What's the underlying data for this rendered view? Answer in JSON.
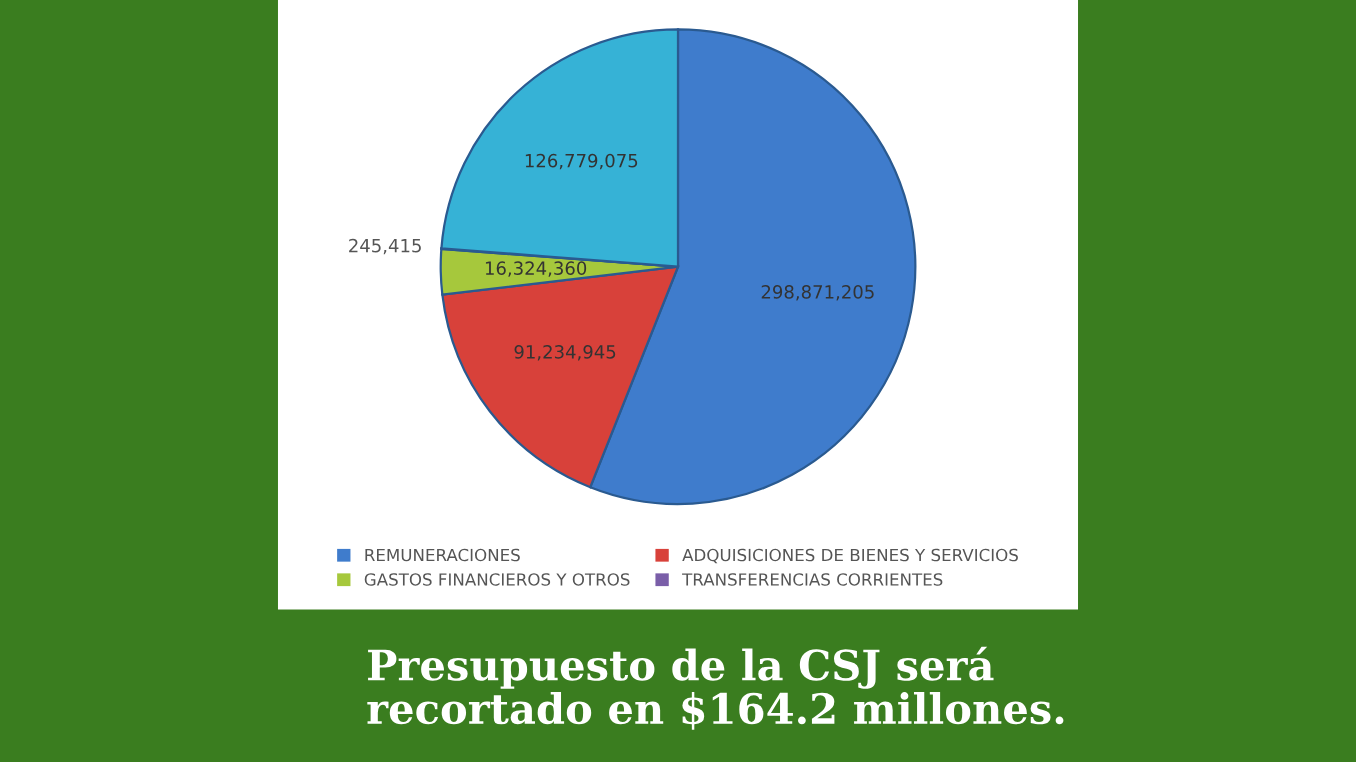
{
  "chart_data": {
    "type": "pie",
    "title": "Presupuesto de la CSJ será\nrecortado en $164.2 millones.",
    "categories": [
      "REMUNERACIONES",
      "ADQUISICIONES DE BIENES Y SERVICIOS",
      "GASTOS FINANCIEROS Y OTROS",
      "TRANSFERENCIAS CORRIENTES",
      null
    ],
    "values": [
      298871205,
      91234945,
      16324360,
      245415,
      126779075
    ],
    "value_labels": [
      "298,871,205",
      "91,234,945",
      "16,324,360",
      "245,415",
      "126,779,075"
    ],
    "colors": [
      "#3f7ccc",
      "#d8413a",
      "#a6c83c",
      "#7a5ea8",
      "#36b2d6"
    ],
    "legend": "bottom"
  }
}
